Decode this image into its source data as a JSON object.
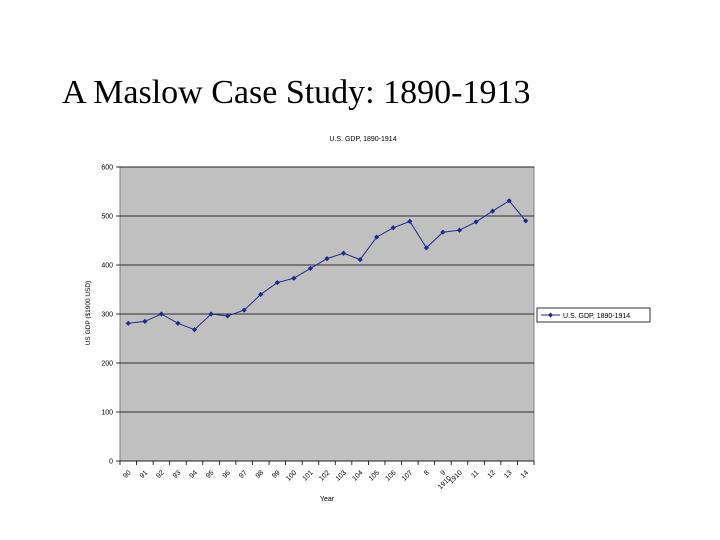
{
  "slide": {
    "title": "A Maslow Case Study: 1890-1913"
  },
  "chart_data": {
    "type": "line",
    "title": "U.S. GDP, 1890-1914",
    "xlabel": "Year",
    "ylabel": "US GDP ($1900 USD)",
    "categories": [
      "90",
      "91",
      "92",
      "93",
      "94",
      "95",
      "96",
      "97",
      "98",
      "99",
      "100",
      "101",
      "102",
      "103",
      "104",
      "105",
      "106",
      "107",
      "8",
      "9\n1910",
      "1910",
      "11",
      "12",
      "13",
      "14"
    ],
    "series": [
      {
        "name": "U.S. GDP, 1890-1914",
        "color": "#1f2a8c",
        "marker": "diamond",
        "values": [
          281,
          285,
          300,
          281,
          268,
          300,
          296,
          308,
          340,
          364,
          373,
          393,
          413,
          424,
          411,
          457,
          476,
          489,
          435,
          467,
          471,
          488,
          510,
          531,
          490
        ]
      }
    ],
    "ylim": [
      0,
      600
    ],
    "yticks": [
      0,
      100,
      200,
      300,
      400,
      500,
      600
    ],
    "grid": true,
    "plot_background": "#c0c0c0",
    "legend": {
      "position": "right",
      "label": "U.S. GDP, 1890-1914"
    }
  }
}
